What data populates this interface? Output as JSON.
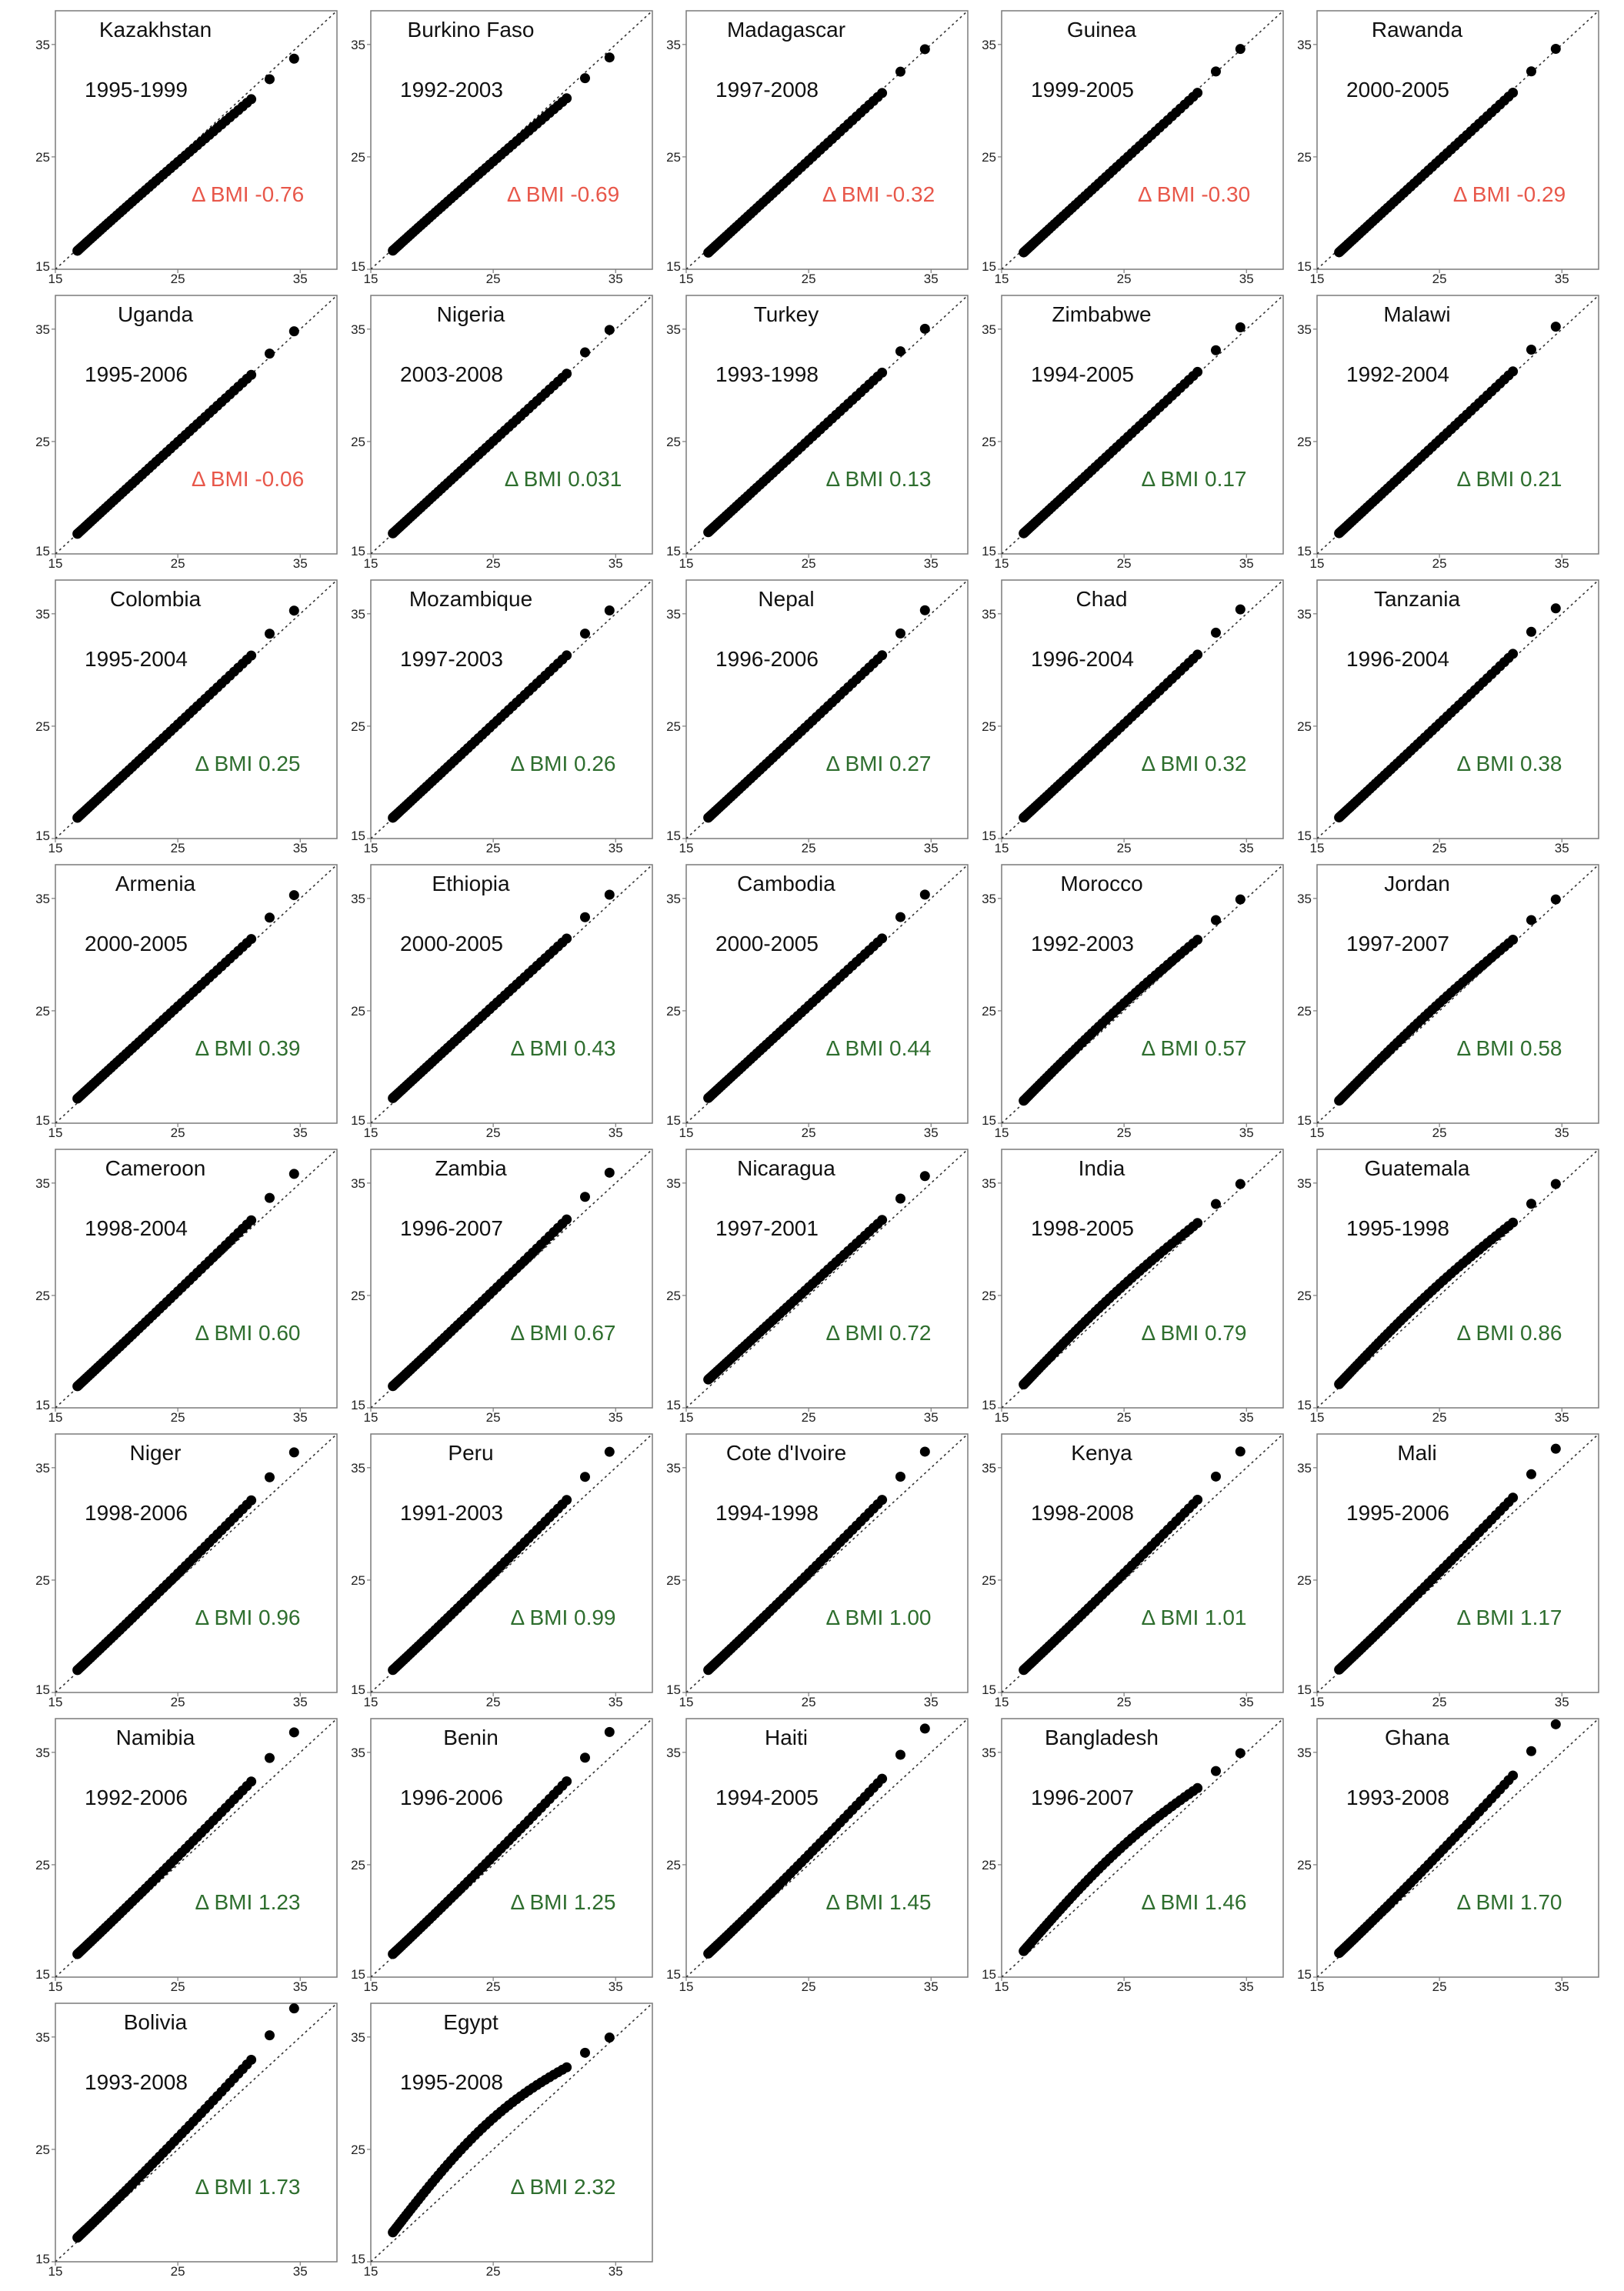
{
  "colors": {
    "negative": "#e8574a",
    "positive": "#2e6e2e",
    "point": "#000000",
    "frame": "#7a7a7a",
    "diagonal": "#333333"
  },
  "axes": {
    "xticks": [
      "15",
      "25",
      "35"
    ],
    "yticks": [
      "15",
      "25",
      "35"
    ]
  },
  "chart_data": [
    {
      "type": "scatter",
      "country": "Kazakhstan",
      "period": "1995-1999",
      "delta": "Δ BMI -0.76",
      "shift": -0.76,
      "curve": "late-up",
      "xlim": [
        15,
        38
      ],
      "ylim": [
        15,
        38
      ],
      "diagonal": "y = x"
    },
    {
      "type": "scatter",
      "country": "Burkino Faso",
      "period": "1992-2003",
      "delta": "Δ BMI -0.69",
      "shift": -0.69,
      "curve": "late-up",
      "xlim": [
        15,
        38
      ],
      "ylim": [
        15,
        38
      ],
      "diagonal": "y = x"
    },
    {
      "type": "scatter",
      "country": "Madagascar",
      "period": "1997-2008",
      "delta": "Δ BMI -0.32",
      "shift": -0.32,
      "curve": "linear",
      "xlim": [
        15,
        38
      ],
      "ylim": [
        15,
        38
      ],
      "diagonal": "y = x"
    },
    {
      "type": "scatter",
      "country": "Guinea",
      "period": "1999-2005",
      "delta": "Δ BMI -0.30",
      "shift": -0.3,
      "curve": "linear",
      "xlim": [
        15,
        38
      ],
      "ylim": [
        15,
        38
      ],
      "diagonal": "y = x"
    },
    {
      "type": "scatter",
      "country": "Rawanda",
      "period": "2000-2005",
      "delta": "Δ BMI -0.29",
      "shift": -0.29,
      "curve": "linear",
      "xlim": [
        15,
        38
      ],
      "ylim": [
        15,
        38
      ],
      "diagonal": "y = x"
    },
    {
      "type": "scatter",
      "country": "Uganda",
      "period": "1995-2006",
      "delta": "Δ BMI -0.06",
      "shift": -0.06,
      "curve": "late-up",
      "xlim": [
        15,
        38
      ],
      "ylim": [
        15,
        38
      ],
      "diagonal": "y = x"
    },
    {
      "type": "scatter",
      "country": "Nigeria",
      "period": "2003-2008",
      "delta": "Δ BMI 0.031",
      "shift": 0.031,
      "curve": "linear",
      "xlim": [
        15,
        38
      ],
      "ylim": [
        15,
        38
      ],
      "diagonal": "y = x"
    },
    {
      "type": "scatter",
      "country": "Turkey",
      "period": "1993-1998",
      "delta": "Δ BMI 0.13",
      "shift": 0.13,
      "curve": "linear",
      "xlim": [
        15,
        38
      ],
      "ylim": [
        15,
        38
      ],
      "diagonal": "y = x"
    },
    {
      "type": "scatter",
      "country": "Zimbabwe",
      "period": "1994-2005",
      "delta": "Δ BMI 0.17",
      "shift": 0.17,
      "curve": "late-up",
      "xlim": [
        15,
        38
      ],
      "ylim": [
        15,
        38
      ],
      "diagonal": "y = x"
    },
    {
      "type": "scatter",
      "country": "Malawi",
      "period": "1992-2004",
      "delta": "Δ BMI 0.21",
      "shift": 0.21,
      "curve": "late-up",
      "xlim": [
        15,
        38
      ],
      "ylim": [
        15,
        38
      ],
      "diagonal": "y = x"
    },
    {
      "type": "scatter",
      "country": "Colombia",
      "period": "1995-2004",
      "delta": "Δ BMI 0.25",
      "shift": 0.25,
      "curve": "late-up",
      "xlim": [
        15,
        38
      ],
      "ylim": [
        15,
        38
      ],
      "diagonal": "y = x"
    },
    {
      "type": "scatter",
      "country": "Mozambique",
      "period": "1997-2003",
      "delta": "Δ BMI 0.26",
      "shift": 0.26,
      "curve": "late-up",
      "xlim": [
        15,
        38
      ],
      "ylim": [
        15,
        38
      ],
      "diagonal": "y = x"
    },
    {
      "type": "scatter",
      "country": "Nepal",
      "period": "1996-2006",
      "delta": "Δ BMI 0.27",
      "shift": 0.27,
      "curve": "late-up",
      "xlim": [
        15,
        38
      ],
      "ylim": [
        15,
        38
      ],
      "diagonal": "y = x"
    },
    {
      "type": "scatter",
      "country": "Chad",
      "period": "1996-2004",
      "delta": "Δ BMI 0.32",
      "shift": 0.32,
      "curve": "late-up",
      "xlim": [
        15,
        38
      ],
      "ylim": [
        15,
        38
      ],
      "diagonal": "y = x"
    },
    {
      "type": "scatter",
      "country": "Tanzania",
      "period": "1996-2004",
      "delta": "Δ BMI 0.38",
      "shift": 0.38,
      "curve": "late-up",
      "xlim": [
        15,
        38
      ],
      "ylim": [
        15,
        38
      ],
      "diagonal": "y = x"
    },
    {
      "type": "scatter",
      "country": "Armenia",
      "period": "2000-2005",
      "delta": "Δ BMI 0.39",
      "shift": 0.39,
      "curve": "linear",
      "xlim": [
        15,
        38
      ],
      "ylim": [
        15,
        38
      ],
      "diagonal": "y = x"
    },
    {
      "type": "scatter",
      "country": "Ethiopia",
      "period": "2000-2005",
      "delta": "Δ BMI 0.43",
      "shift": 0.43,
      "curve": "linear",
      "xlim": [
        15,
        38
      ],
      "ylim": [
        15,
        38
      ],
      "diagonal": "y = x"
    },
    {
      "type": "scatter",
      "country": "Cambodia",
      "period": "2000-2005",
      "delta": "Δ BMI 0.44",
      "shift": 0.44,
      "curve": "linear",
      "xlim": [
        15,
        38
      ],
      "ylim": [
        15,
        38
      ],
      "diagonal": "y = x"
    },
    {
      "type": "scatter",
      "country": "Morocco",
      "period": "1992-2003",
      "delta": "Δ BMI 0.57",
      "shift": 0.57,
      "curve": "mid-bulge",
      "xlim": [
        15,
        38
      ],
      "ylim": [
        15,
        38
      ],
      "diagonal": "y = x"
    },
    {
      "type": "scatter",
      "country": "Jordan",
      "period": "1997-2007",
      "delta": "Δ BMI 0.58",
      "shift": 0.58,
      "curve": "mid-bulge",
      "xlim": [
        15,
        38
      ],
      "ylim": [
        15,
        38
      ],
      "diagonal": "y = x"
    },
    {
      "type": "scatter",
      "country": "Cameroon",
      "period": "1998-2004",
      "delta": "Δ BMI 0.60",
      "shift": 0.6,
      "curve": "late-up",
      "xlim": [
        15,
        38
      ],
      "ylim": [
        15,
        38
      ],
      "diagonal": "y = x"
    },
    {
      "type": "scatter",
      "country": "Zambia",
      "period": "1996-2007",
      "delta": "Δ BMI 0.67",
      "shift": 0.67,
      "curve": "late-up",
      "xlim": [
        15,
        38
      ],
      "ylim": [
        15,
        38
      ],
      "diagonal": "y = x"
    },
    {
      "type": "scatter",
      "country": "Nicaragua",
      "period": "1997-2001",
      "delta": "Δ BMI 0.72",
      "shift": 0.72,
      "curve": "linear",
      "xlim": [
        15,
        38
      ],
      "ylim": [
        15,
        38
      ],
      "diagonal": "y = x"
    },
    {
      "type": "scatter",
      "country": "India",
      "period": "1998-2005",
      "delta": "Δ BMI 0.79",
      "shift": 0.79,
      "curve": "mid-bulge",
      "xlim": [
        15,
        38
      ],
      "ylim": [
        15,
        38
      ],
      "diagonal": "y = x"
    },
    {
      "type": "scatter",
      "country": "Guatemala",
      "period": "1995-1998",
      "delta": "Δ BMI 0.86",
      "shift": 0.86,
      "curve": "mid-bulge",
      "xlim": [
        15,
        38
      ],
      "ylim": [
        15,
        38
      ],
      "diagonal": "y = x"
    },
    {
      "type": "scatter",
      "country": "Niger",
      "period": "1998-2006",
      "delta": "Δ BMI 0.96",
      "shift": 0.96,
      "curve": "late-up",
      "xlim": [
        15,
        38
      ],
      "ylim": [
        15,
        38
      ],
      "diagonal": "y = x"
    },
    {
      "type": "scatter",
      "country": "Peru",
      "period": "1991-2003",
      "delta": "Δ BMI 0.99",
      "shift": 0.99,
      "curve": "late-up",
      "xlim": [
        15,
        38
      ],
      "ylim": [
        15,
        38
      ],
      "diagonal": "y = x"
    },
    {
      "type": "scatter",
      "country": "Cote d'Ivoire",
      "period": "1994-1998",
      "delta": "Δ BMI 1.00",
      "shift": 1.0,
      "curve": "late-up",
      "xlim": [
        15,
        38
      ],
      "ylim": [
        15,
        38
      ],
      "diagonal": "y = x"
    },
    {
      "type": "scatter",
      "country": "Kenya",
      "period": "1998-2008",
      "delta": "Δ BMI 1.01",
      "shift": 1.01,
      "curve": "late-up",
      "xlim": [
        15,
        38
      ],
      "ylim": [
        15,
        38
      ],
      "diagonal": "y = x"
    },
    {
      "type": "scatter",
      "country": "Mali",
      "period": "1995-2006",
      "delta": "Δ BMI 1.17",
      "shift": 1.17,
      "curve": "late-up",
      "xlim": [
        15,
        38
      ],
      "ylim": [
        15,
        38
      ],
      "diagonal": "y = x"
    },
    {
      "type": "scatter",
      "country": "Namibia",
      "period": "1992-2006",
      "delta": "Δ BMI 1.23",
      "shift": 1.23,
      "curve": "late-up",
      "xlim": [
        15,
        38
      ],
      "ylim": [
        15,
        38
      ],
      "diagonal": "y = x"
    },
    {
      "type": "scatter",
      "country": "Benin",
      "period": "1996-2006",
      "delta": "Δ BMI 1.25",
      "shift": 1.25,
      "curve": "late-up",
      "xlim": [
        15,
        38
      ],
      "ylim": [
        15,
        38
      ],
      "diagonal": "y = x"
    },
    {
      "type": "scatter",
      "country": "Haiti",
      "period": "1994-2005",
      "delta": "Δ BMI 1.45",
      "shift": 1.45,
      "curve": "late-up",
      "xlim": [
        15,
        38
      ],
      "ylim": [
        15,
        38
      ],
      "diagonal": "y = x"
    },
    {
      "type": "scatter",
      "country": "Bangladesh",
      "period": "1996-2007",
      "delta": "Δ BMI 1.46",
      "shift": 1.46,
      "curve": "mid-bulge",
      "xlim": [
        15,
        38
      ],
      "ylim": [
        15,
        38
      ],
      "diagonal": "y = x"
    },
    {
      "type": "scatter",
      "country": "Ghana",
      "period": "1993-2008",
      "delta": "Δ BMI 1.70",
      "shift": 1.7,
      "curve": "late-up",
      "xlim": [
        15,
        38
      ],
      "ylim": [
        15,
        38
      ],
      "diagonal": "y = x"
    },
    {
      "type": "scatter",
      "country": "Bolivia",
      "period": "1993-2008",
      "delta": "Δ BMI 1.73",
      "shift": 1.73,
      "curve": "late-up",
      "xlim": [
        15,
        38
      ],
      "ylim": [
        15,
        38
      ],
      "diagonal": "y = x"
    },
    {
      "type": "scatter",
      "country": "Egypt",
      "period": "1995-2008",
      "delta": "Δ BMI 2.32",
      "shift": 2.32,
      "curve": "mid-bulge",
      "xlim": [
        15,
        38
      ],
      "ylim": [
        15,
        38
      ],
      "diagonal": "y = x"
    }
  ]
}
